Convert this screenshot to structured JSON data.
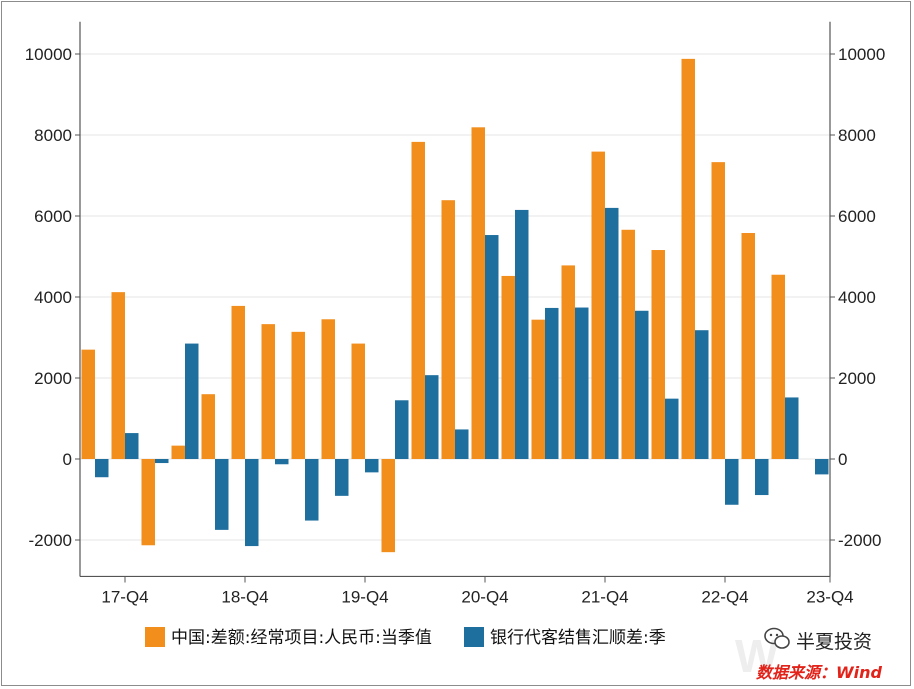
{
  "chart_data": {
    "type": "bar",
    "categories": [
      "17-Q3",
      "17-Q4",
      "18-Q1",
      "18-Q2",
      "18-Q3",
      "18-Q4",
      "19-Q1",
      "19-Q2",
      "19-Q3",
      "19-Q4",
      "20-Q1",
      "20-Q2",
      "20-Q3",
      "20-Q4",
      "21-Q1",
      "21-Q2",
      "21-Q3",
      "21-Q4",
      "22-Q1",
      "22-Q2",
      "22-Q3",
      "22-Q4",
      "23-Q1",
      "23-Q2",
      "23-Q3"
    ],
    "x_tick_labels": [
      "17-Q4",
      "18-Q4",
      "19-Q4",
      "20-Q4",
      "21-Q4",
      "22-Q4",
      "23-Q4"
    ],
    "series": [
      {
        "name": "中国:差额:经常项目:人民币:当季值",
        "color": "#f28e1c",
        "values": [
          2700,
          4120,
          -2130,
          330,
          1600,
          3780,
          3330,
          3140,
          3450,
          2850,
          -2300,
          7830,
          6390,
          8190,
          4520,
          3440,
          4780,
          7590,
          5660,
          5160,
          9880,
          7330,
          5580,
          4550,
          null
        ]
      },
      {
        "name": "银行代客结售汇顺差:季",
        "color": "#1f6f9e",
        "values": [
          -450,
          640,
          -100,
          2850,
          -1750,
          -2150,
          -130,
          -1520,
          -910,
          -330,
          1450,
          2070,
          730,
          5530,
          6150,
          3730,
          3740,
          6200,
          3660,
          1490,
          3180,
          -1130,
          -890,
          1520,
          -380
        ]
      }
    ],
    "ylim": [
      -2900,
      10500
    ],
    "y_ticks": [
      -2000,
      0,
      2000,
      4000,
      6000,
      8000,
      10000
    ],
    "y_tick_labels": [
      "-2000",
      "0",
      "2000",
      "4000",
      "6000",
      "8000",
      "10000"
    ],
    "secondary_y_axis": true,
    "grid": true,
    "legend_position": "bottom-center",
    "watermark": "半夏投资",
    "source_note": "数据来源：Wind"
  },
  "legend": {
    "item1": "中国:差额:经常项目:人民币:当季值",
    "item2": "银行代客结售汇顺差:季"
  },
  "colors": {
    "series1": "#f28e1c",
    "series2": "#1f6f9e",
    "grid": "#e6e6e6",
    "axis": "#555555",
    "source": "#e2231a"
  }
}
